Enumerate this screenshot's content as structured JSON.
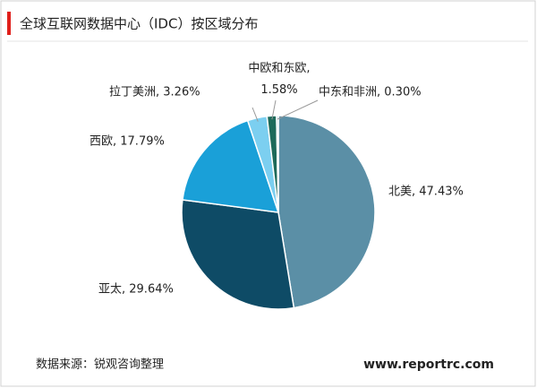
{
  "chart_data": {
    "type": "pie",
    "title": "全球互联网数据中心（IDC）按区域分布",
    "values": [
      47.43,
      29.64,
      17.79,
      3.26,
      1.58,
      0.3
    ],
    "value_labels": [
      "北美, 47.43%",
      "亚太, 29.64%",
      "西欧, 17.79%",
      "拉丁美洲, 3.26%",
      "中欧和东欧,\n1.58%",
      "中东和非洲, 0.30%"
    ],
    "colors": [
      "#5b8fa6",
      "#0e4b66",
      "#1aa0d8",
      "#7ccff0",
      "#1d6a5a",
      "#a6cddc"
    ],
    "source": "数据来源：锐观咨询整理",
    "website": "www.reportrc.com"
  }
}
